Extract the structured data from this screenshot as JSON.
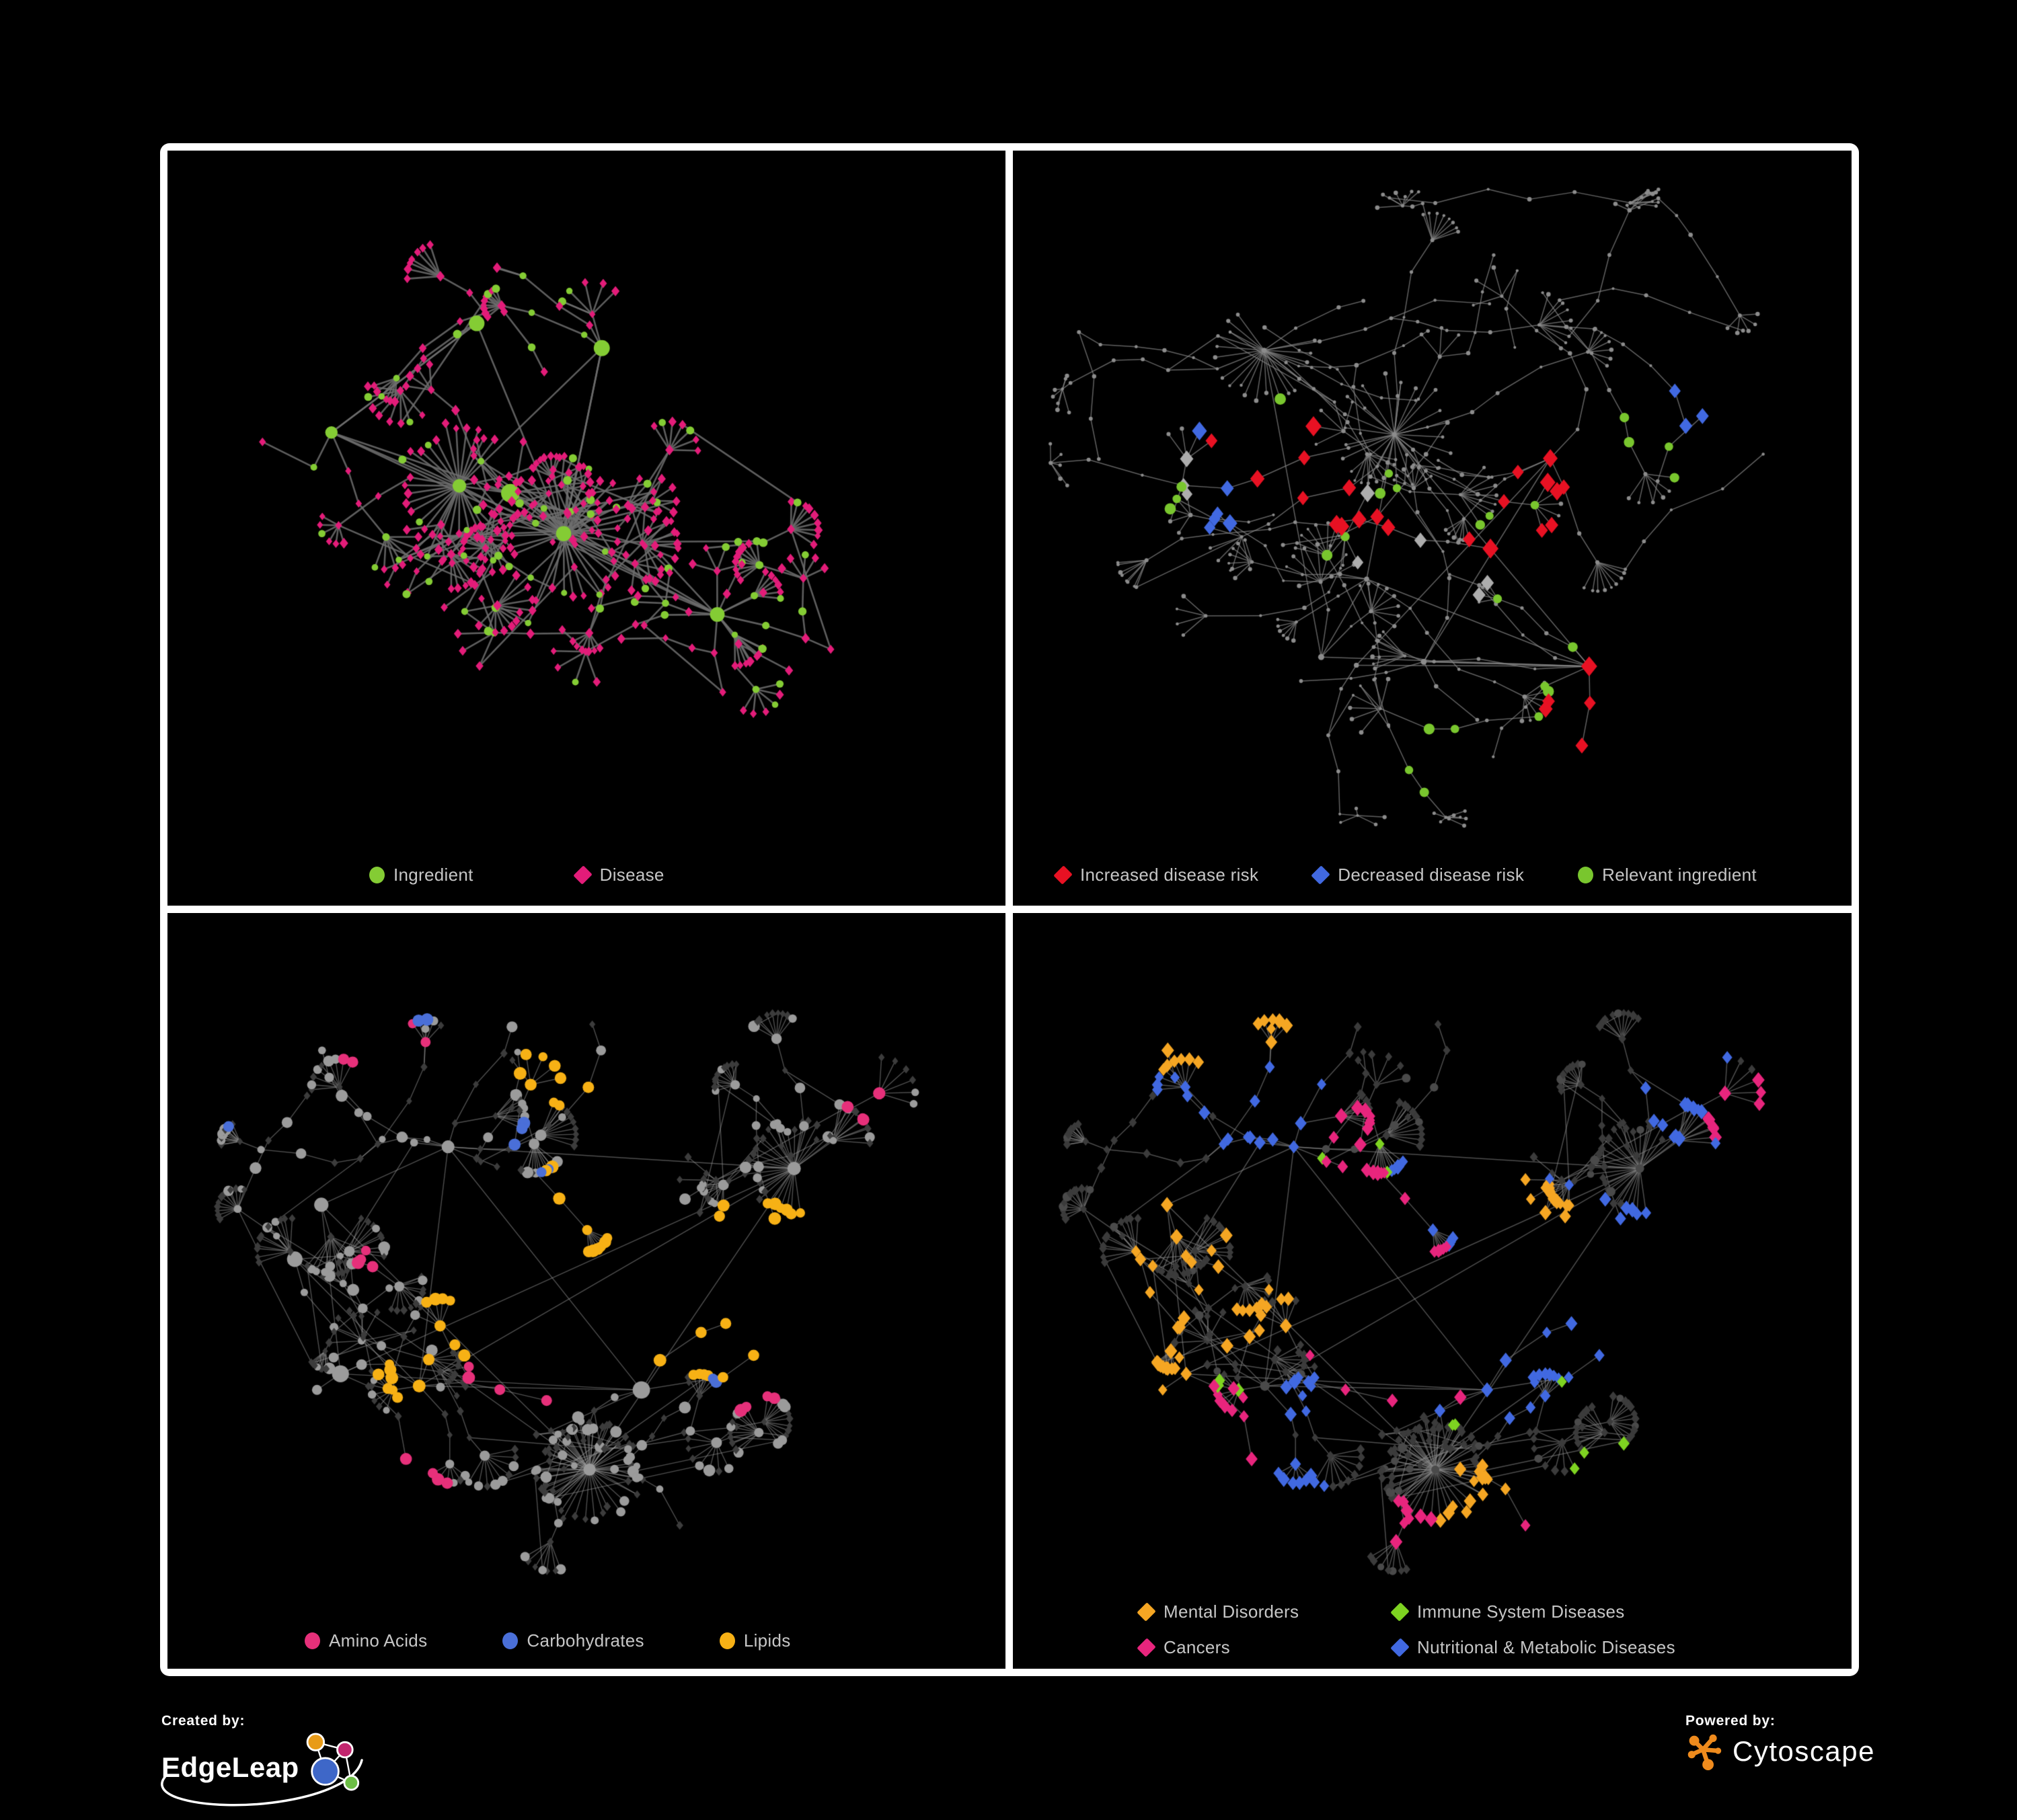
{
  "page": {
    "background": "#000000",
    "frame_color": "#FFFFFF",
    "panel_background": "#000000",
    "legend_text_color": "#C6C6C6"
  },
  "footer": {
    "created_by": {
      "label": "Created by:",
      "brand": "EdgeLeap",
      "logo_colors": [
        "#E89B18",
        "#C2256E",
        "#3E67C8",
        "#6CBE45"
      ]
    },
    "powered_by": {
      "label": "Powered by:",
      "brand": "Cytoscape",
      "logo_color": "#EF8B1D"
    }
  },
  "chart_data": [
    {
      "type": "network",
      "panel": "top-left",
      "description": "Ingredient-disease association network; green circle nodes are ingredients, magenta diamond nodes are diseases, gray edges are associations",
      "legend": [
        {
          "label": "Ingredient",
          "shape": "circle",
          "color": "#84CC34"
        },
        {
          "label": "Disease",
          "shape": "diamond",
          "color": "#E31C79"
        }
      ],
      "style": {
        "edge_color": "#6F6F6F",
        "edge_width": 2.6,
        "edge_alpha": 0.85
      },
      "layout": {
        "seed": 101,
        "nodes": 430,
        "clusters": 7,
        "mega": 2,
        "center": [
          0.46,
          0.43
        ],
        "spread": 0.28,
        "step": [
          30,
          80
        ],
        "chain": [
          1,
          3
        ],
        "fan_p": 0.6,
        "fan_n": [
          4,
          9
        ],
        "cross": 95,
        "cross_len": 250
      },
      "node_classes": [
        {
          "name": "ingredient",
          "shape": "circle",
          "color": "#84CC34",
          "share": 0.34,
          "leaf_share": 0.15,
          "r": [
            4.5,
            6.5
          ],
          "hub_r": [
            8,
            14
          ],
          "role": "hub"
        },
        {
          "name": "disease",
          "shape": "diamond",
          "color": "#E31C79",
          "share": 0.66,
          "leaf_share": 0.85,
          "r": [
            4.5,
            6.5
          ]
        }
      ],
      "highlights": []
    },
    {
      "type": "network",
      "panel": "top-right",
      "description": "Same association network with disease-risk overlay; small gray nodes, red diamonds = increased risk, blue diamonds = decreased risk, gray diamonds = unlabeled risk, green circles = relevant ingredients",
      "legend": [
        {
          "label": "Increased disease risk",
          "shape": "diamond",
          "color": "#E81123"
        },
        {
          "label": "Decreased disease risk",
          "shape": "diamond",
          "color": "#4169E1"
        },
        {
          "label": "Relevant ingredient",
          "shape": "circle",
          "color": "#79C62E"
        }
      ],
      "style": {
        "edge_color": "#8A8A8A",
        "edge_width": 1.5,
        "edge_alpha": 0.7
      },
      "layout": {
        "seed": 202,
        "nodes": 520,
        "clusters": 8,
        "mega": 2,
        "center": [
          0.44,
          0.47
        ],
        "spread": 0.3,
        "step": [
          34,
          78
        ],
        "chain": [
          2,
          5
        ],
        "fan_p": 0.5,
        "fan_n": [
          4,
          9
        ],
        "cross": 55,
        "cross_len": 210
      },
      "node_classes": [
        {
          "name": "node",
          "shape": "circle",
          "color": "#8C8C8C",
          "share": 1,
          "r": [
            2,
            3.4
          ],
          "hub_r": [
            3,
            4.6
          ],
          "role": "hub"
        }
      ],
      "highlights": [
        {
          "name": "increased-disease-risk",
          "shape": "diamond",
          "color": "#E81123",
          "r": 10,
          "count": 26,
          "foci": [
            [
              0.44,
              0.5,
              0.055
            ],
            [
              0.29,
              0.42,
              0.05
            ],
            [
              0.59,
              0.52,
              0.05
            ],
            [
              0.73,
              0.75,
              0.035
            ],
            [
              0.63,
              0.41,
              0.01
            ]
          ]
        },
        {
          "name": "decreased-disease-risk",
          "shape": "diamond",
          "color": "#4169E1",
          "r": 10,
          "count": 9,
          "foci": [
            [
              0.25,
              0.46,
              0.035
            ],
            [
              0.84,
              0.35,
              0.015
            ],
            [
              0.27,
              0.42,
              0.02
            ]
          ]
        },
        {
          "name": "unlabeled-risk",
          "shape": "diamond",
          "color": "#ADADAD",
          "r": 9,
          "count": 8,
          "foci": [
            [
              0.46,
              0.5,
              0.06
            ],
            [
              0.24,
              0.43,
              0.03
            ],
            [
              0.58,
              0.57,
              0.03
            ]
          ]
        },
        {
          "name": "relevant-ingredient",
          "shape": "circle",
          "color": "#79C62E",
          "r": 7,
          "count": 25,
          "foci": [
            [
              0.43,
              0.49,
              0.07
            ],
            [
              0.25,
              0.42,
              0.06
            ],
            [
              0.7,
              0.74,
              0.03
            ],
            [
              0.6,
              0.52,
              0.04
            ],
            [
              0.51,
              0.8,
              0.005
            ],
            [
              0.79,
              0.37,
              0.005
            ]
          ]
        }
      ]
    },
    {
      "type": "network",
      "panel": "bottom-left",
      "description": "Nutrient network; gray circles = ingredients, dark diamonds = diseases; colored circles mark nutrient classes (Amino Acids pink, Carbohydrates blue, Lipids yellow)",
      "legend": [
        {
          "label": "Amino Acids",
          "shape": "circle",
          "color": "#E6307A"
        },
        {
          "label": "Carbohydrates",
          "shape": "circle",
          "color": "#4A6FD8"
        },
        {
          "label": "Lipids",
          "shape": "circle",
          "color": "#F7B115"
        }
      ],
      "style": {
        "edge_color": "#9E9E9E",
        "edge_width": 1.4,
        "edge_alpha": 0.5
      },
      "layout": {
        "seed": 303,
        "nodes": 540,
        "clusters": 8,
        "mega": 3,
        "center": [
          0.45,
          0.45
        ],
        "spread": 0.3,
        "step": [
          30,
          72
        ],
        "chain": [
          1,
          4
        ],
        "fan_p": 0.55,
        "fan_n": [
          5,
          12
        ],
        "cross": 130,
        "cross_len": 230
      },
      "node_classes": [
        {
          "name": "ingredient",
          "shape": "circle",
          "color": "#9B9B9B",
          "share": 0.45,
          "leaf_share": 0.3,
          "r": [
            5,
            9
          ],
          "hub_r": [
            9,
            13
          ],
          "role": "hub"
        },
        {
          "name": "disease",
          "shape": "diamond",
          "color": "#3C3C3C",
          "share": 0.55,
          "leaf_share": 0.7,
          "r": [
            4.2,
            5.6
          ]
        }
      ],
      "highlights": [
        {
          "name": "lipids",
          "shape": "circle",
          "color": "#F7B115",
          "r": 8,
          "count": 55,
          "foci": [
            [
              0.5,
              0.4,
              0.035
            ],
            [
              0.42,
              0.47,
              0.05
            ],
            [
              0.44,
              0.2,
              0.05
            ],
            [
              0.65,
              0.54,
              0.03
            ],
            [
              0.28,
              0.61,
              0.02
            ],
            [
              0.7,
              0.45,
              0.04
            ]
          ]
        },
        {
          "name": "carbohydrates",
          "shape": "circle",
          "color": "#4A6FD8",
          "r": 8,
          "count": 12,
          "foci": [
            [
              0.5,
              0.41,
              0.03
            ],
            [
              0.41,
              0.28,
              0.01
            ],
            [
              0.05,
              0.24,
              0.005
            ],
            [
              0.28,
              0.06,
              0.005
            ],
            [
              0.68,
              0.55,
              0.005
            ]
          ]
        },
        {
          "name": "amino-acids",
          "shape": "circle",
          "color": "#E6307A",
          "r": 8,
          "count": 24,
          "foci": [
            [
              0.24,
              0.19,
              0.04
            ],
            [
              0.25,
              0.45,
              0.05
            ],
            [
              0.27,
              0.74,
              0.03
            ],
            [
              0.68,
              0.62,
              0.04
            ],
            [
              0.85,
              0.26,
              0.05
            ],
            [
              0.42,
              0.62,
              0.05
            ]
          ]
        }
      ]
    },
    {
      "type": "network",
      "panel": "bottom-right",
      "description": "Same nutrient-disease network colored by disease class; dark gray base nodes with colored diamonds (Mental Disorders orange, Immune System Diseases green, Cancers pink, Nutritional & Metabolic Diseases blue)",
      "legend": [
        {
          "label": "Mental Disorders",
          "shape": "diamond",
          "color": "#F5A623"
        },
        {
          "label": "Immune System Diseases",
          "shape": "diamond",
          "color": "#7ED321"
        },
        {
          "label": "Cancers",
          "shape": "diamond",
          "color": "#E8257D"
        },
        {
          "label": "Nutritional & Metabolic Diseases",
          "shape": "diamond",
          "color": "#4169E1"
        }
      ],
      "style": {
        "edge_color": "#8E8E8E",
        "edge_width": 1.5,
        "edge_alpha": 0.55
      },
      "layout": {
        "seed": 303,
        "nodes": 540,
        "clusters": 8,
        "mega": 3,
        "center": [
          0.45,
          0.45
        ],
        "spread": 0.3,
        "step": [
          30,
          72
        ],
        "chain": [
          1,
          4
        ],
        "fan_p": 0.55,
        "fan_n": [
          5,
          12
        ],
        "cross": 130,
        "cross_len": 230
      },
      "node_classes": [
        {
          "name": "disease",
          "shape": "diamond",
          "color": "#3B3B3B",
          "share": 0.82,
          "leaf_share": 0.88,
          "r": [
            4.8,
            6.2
          ]
        },
        {
          "name": "ingredient",
          "shape": "circle",
          "color": "#4A4A4A",
          "share": 0.18,
          "leaf_share": 0.12,
          "r": [
            5,
            7
          ],
          "hub_r": [
            6,
            8
          ],
          "role": "hub"
        }
      ],
      "highlights": [
        {
          "name": "mental-disorders",
          "shape": "diamond",
          "color": "#F5A623",
          "r": 8,
          "count": 85,
          "foci": [
            [
              0.21,
              0.47,
              0.065
            ],
            [
              0.3,
              0.52,
              0.04
            ],
            [
              0.14,
              0.7,
              0.015
            ],
            [
              0.23,
              0.12,
              0.01
            ],
            [
              0.62,
              0.41,
              0.008
            ],
            [
              0.55,
              0.78,
              0.008
            ]
          ]
        },
        {
          "name": "cancers",
          "shape": "diamond",
          "color": "#E8257D",
          "r": 8,
          "count": 54,
          "foci": [
            [
              0.46,
              0.53,
              0.05
            ],
            [
              0.42,
              0.4,
              0.04
            ],
            [
              0.87,
              0.27,
              0.025
            ],
            [
              0.51,
              0.82,
              0.03
            ],
            [
              0.25,
              0.68,
              0.02
            ],
            [
              0.4,
              0.28,
              0.01
            ]
          ]
        },
        {
          "name": "nutritional-metabolic-diseases",
          "shape": "diamond",
          "color": "#4169E1",
          "r": 8,
          "count": 85,
          "foci": [
            [
              0.57,
              0.58,
              0.03
            ],
            [
              0.63,
              0.49,
              0.03
            ],
            [
              0.8,
              0.36,
              0.045
            ],
            [
              0.8,
              0.22,
              0.03
            ],
            [
              0.22,
              0.16,
              0.07
            ],
            [
              0.3,
              0.28,
              0.04
            ],
            [
              0.35,
              0.63,
              0.03
            ],
            [
              0.3,
              0.82,
              0.04
            ],
            [
              0.5,
              0.39,
              0.02
            ]
          ]
        },
        {
          "name": "immune-system-diseases",
          "shape": "diamond",
          "color": "#7ED321",
          "r": 8,
          "count": 12,
          "foci": [
            [
              0.4,
              0.4,
              0.1
            ],
            [
              0.58,
              0.53,
              0.01
            ],
            [
              0.25,
              0.71,
              0.005
            ],
            [
              0.72,
              0.76,
              0.01
            ]
          ]
        }
      ]
    }
  ]
}
